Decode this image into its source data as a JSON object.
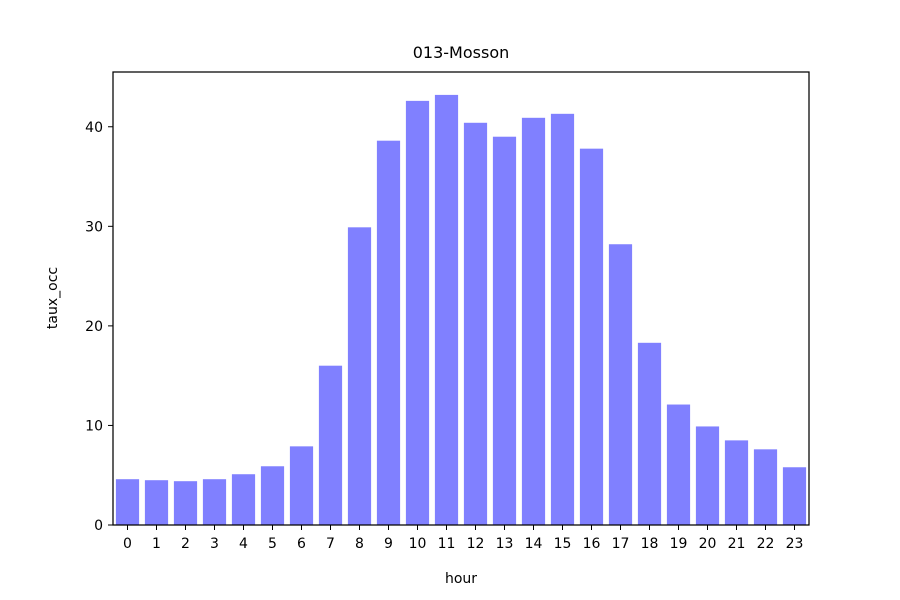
{
  "chart_data": {
    "type": "bar",
    "title": "013-Mosson",
    "xlabel": "hour",
    "ylabel": "taux_occ",
    "categories": [
      "0",
      "1",
      "2",
      "3",
      "4",
      "5",
      "6",
      "7",
      "8",
      "9",
      "10",
      "11",
      "12",
      "13",
      "14",
      "15",
      "16",
      "17",
      "18",
      "19",
      "20",
      "21",
      "22",
      "23"
    ],
    "values": [
      4.6,
      4.5,
      4.4,
      4.6,
      5.1,
      5.9,
      7.9,
      16.0,
      29.9,
      38.6,
      42.6,
      43.2,
      40.4,
      39.0,
      40.9,
      41.3,
      37.8,
      28.2,
      18.3,
      12.1,
      9.9,
      8.5,
      7.6,
      5.8
    ],
    "ylim": [
      0,
      45.5
    ],
    "yticks": [
      0,
      10,
      20,
      30,
      40
    ],
    "bar_color": "#8080ff",
    "grid": false
  }
}
